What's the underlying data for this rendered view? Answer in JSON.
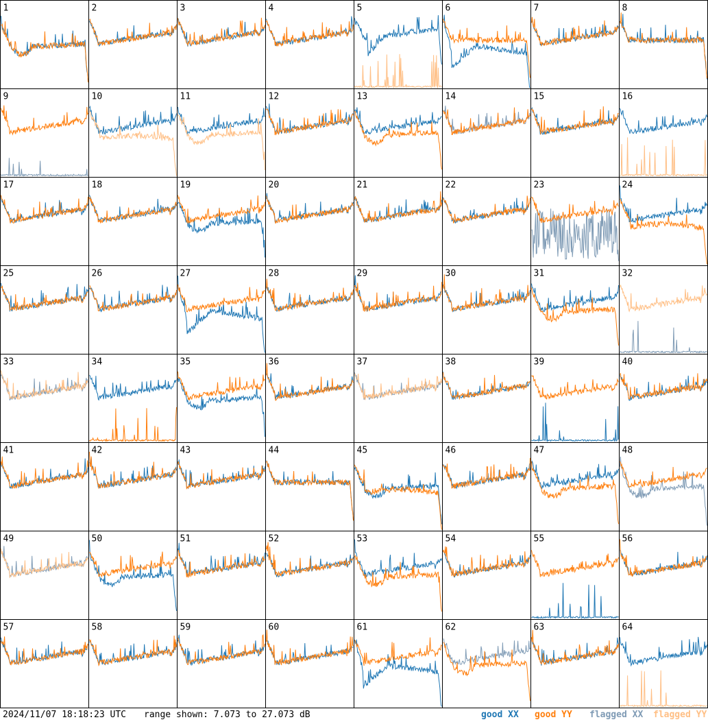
{
  "chart_data": {
    "type": "line",
    "panel_labels": [
      "1",
      "2",
      "3",
      "4",
      "5",
      "6",
      "7",
      "8",
      "9",
      "10",
      "11",
      "12",
      "13",
      "14",
      "15",
      "16",
      "17",
      "18",
      "19",
      "20",
      "21",
      "22",
      "23",
      "24",
      "25",
      "26",
      "27",
      "28",
      "29",
      "30",
      "31",
      "32",
      "33",
      "34",
      "35",
      "36",
      "37",
      "38",
      "39",
      "40",
      "41",
      "42",
      "43",
      "44",
      "45",
      "46",
      "47",
      "48",
      "49",
      "50",
      "51",
      "52",
      "53",
      "54",
      "55",
      "56",
      "57",
      "58",
      "59",
      "60",
      "61",
      "62",
      "63",
      "64"
    ],
    "panels": [
      {
        "label": "1",
        "xx": "good",
        "yy": "good",
        "xx_shape": "dip",
        "yy_shape": "dip"
      },
      {
        "label": "2",
        "xx": "good",
        "yy": "good",
        "xx_shape": "normal",
        "yy_shape": "normal"
      },
      {
        "label": "3",
        "xx": "good",
        "yy": "good",
        "xx_shape": "normal",
        "yy_shape": "normal"
      },
      {
        "label": "4",
        "xx": "good",
        "yy": "good",
        "xx_shape": "normal",
        "yy_shape": "normal"
      },
      {
        "label": "5",
        "xx": "good",
        "yy": "flagged",
        "xx_shape": "dip_high",
        "yy_shape": "flat_low"
      },
      {
        "label": "6",
        "xx": "good",
        "yy": "good",
        "xx_shape": "dip_deep",
        "yy_shape": "flat_high"
      },
      {
        "label": "7",
        "xx": "good",
        "yy": "good",
        "xx_shape": "normal",
        "yy_shape": "normal"
      },
      {
        "label": "8",
        "xx": "good",
        "yy": "good",
        "xx_shape": "flat_high",
        "yy_shape": "flat_high"
      },
      {
        "label": "9",
        "xx": "flagged",
        "yy": "good",
        "xx_shape": "flat_low",
        "yy_shape": "normal"
      },
      {
        "label": "10",
        "xx": "good",
        "yy": "flagged",
        "xx_shape": "normal",
        "yy_shape": "dip_shallow"
      },
      {
        "label": "11",
        "xx": "good",
        "yy": "flagged",
        "xx_shape": "normal",
        "yy_shape": "dip"
      },
      {
        "label": "12",
        "xx": "good",
        "yy": "good",
        "xx_shape": "normal",
        "yy_shape": "normal"
      },
      {
        "label": "13",
        "xx": "good",
        "yy": "good",
        "xx_shape": "normal",
        "yy_shape": "dip"
      },
      {
        "label": "14",
        "xx": "flagged",
        "yy": "good",
        "xx_shape": "normal",
        "yy_shape": "normal"
      },
      {
        "label": "15",
        "xx": "good",
        "yy": "good",
        "xx_shape": "normal",
        "yy_shape": "normal"
      },
      {
        "label": "16",
        "xx": "good",
        "yy": "flagged",
        "xx_shape": "normal",
        "yy_shape": "flat_low"
      },
      {
        "label": "17",
        "xx": "good",
        "yy": "good",
        "xx_shape": "normal",
        "yy_shape": "normal"
      },
      {
        "label": "18",
        "xx": "good",
        "yy": "good",
        "xx_shape": "normal",
        "yy_shape": "normal"
      },
      {
        "label": "19",
        "xx": "good",
        "yy": "good",
        "xx_shape": "dip",
        "yy_shape": "normal"
      },
      {
        "label": "20",
        "xx": "good",
        "yy": "good",
        "xx_shape": "normal",
        "yy_shape": "normal"
      },
      {
        "label": "21",
        "xx": "good",
        "yy": "good",
        "xx_shape": "normal",
        "yy_shape": "normal"
      },
      {
        "label": "22",
        "xx": "good",
        "yy": "good",
        "xx_shape": "normal",
        "yy_shape": "normal"
      },
      {
        "label": "23",
        "xx": "flagged",
        "yy": "good",
        "xx_shape": "noisy_low",
        "yy_shape": "normal"
      },
      {
        "label": "24",
        "xx": "good",
        "yy": "good",
        "xx_shape": "normal",
        "yy_shape": "dip_shallow"
      },
      {
        "label": "25",
        "xx": "good",
        "yy": "good",
        "xx_shape": "normal",
        "yy_shape": "normal"
      },
      {
        "label": "26",
        "xx": "good",
        "yy": "good",
        "xx_shape": "normal",
        "yy_shape": "normal"
      },
      {
        "label": "27",
        "xx": "good",
        "yy": "good",
        "xx_shape": "dip_deep",
        "yy_shape": "normal"
      },
      {
        "label": "28",
        "xx": "good",
        "yy": "good",
        "xx_shape": "normal",
        "yy_shape": "normal"
      },
      {
        "label": "29",
        "xx": "good",
        "yy": "good",
        "xx_shape": "normal",
        "yy_shape": "normal"
      },
      {
        "label": "30",
        "xx": "good",
        "yy": "good",
        "xx_shape": "normal",
        "yy_shape": "normal"
      },
      {
        "label": "31",
        "xx": "good",
        "yy": "good",
        "xx_shape": "normal",
        "yy_shape": "dip"
      },
      {
        "label": "32",
        "xx": "flagged",
        "yy": "flagged",
        "xx_shape": "flat_low",
        "yy_shape": "normal"
      },
      {
        "label": "33",
        "xx": "flagged",
        "yy": "flagged",
        "xx_shape": "normal",
        "yy_shape": "normal"
      },
      {
        "label": "34",
        "xx": "good",
        "yy": "good",
        "xx_shape": "normal",
        "yy_shape": "flat_low"
      },
      {
        "label": "35",
        "xx": "good",
        "yy": "good",
        "xx_shape": "dip",
        "yy_shape": "normal"
      },
      {
        "label": "36",
        "xx": "good",
        "yy": "good",
        "xx_shape": "normal",
        "yy_shape": "normal"
      },
      {
        "label": "37",
        "xx": "flagged",
        "yy": "flagged",
        "xx_shape": "normal",
        "yy_shape": "normal"
      },
      {
        "label": "38",
        "xx": "good",
        "yy": "good",
        "xx_shape": "normal",
        "yy_shape": "normal"
      },
      {
        "label": "39",
        "xx": "good",
        "yy": "good",
        "xx_shape": "flat_low",
        "yy_shape": "normal"
      },
      {
        "label": "40",
        "xx": "good",
        "yy": "good",
        "xx_shape": "normal",
        "yy_shape": "normal"
      },
      {
        "label": "41",
        "xx": "good",
        "yy": "good",
        "xx_shape": "normal",
        "yy_shape": "normal"
      },
      {
        "label": "42",
        "xx": "good",
        "yy": "good",
        "xx_shape": "normal",
        "yy_shape": "normal"
      },
      {
        "label": "43",
        "xx": "good",
        "yy": "good",
        "xx_shape": "normal",
        "yy_shape": "normal"
      },
      {
        "label": "44",
        "xx": "good",
        "yy": "good",
        "xx_shape": "flat_high",
        "yy_shape": "flat_high"
      },
      {
        "label": "45",
        "xx": "good",
        "yy": "good",
        "xx_shape": "dip",
        "yy_shape": "dip_shallow"
      },
      {
        "label": "46",
        "xx": "good",
        "yy": "good",
        "xx_shape": "normal",
        "yy_shape": "normal"
      },
      {
        "label": "47",
        "xx": "good",
        "yy": "good",
        "xx_shape": "normal",
        "yy_shape": "dip"
      },
      {
        "label": "48",
        "xx": "flagged",
        "yy": "good",
        "xx_shape": "dip",
        "yy_shape": "normal"
      },
      {
        "label": "49",
        "xx": "flagged",
        "yy": "flagged",
        "xx_shape": "normal",
        "yy_shape": "normal"
      },
      {
        "label": "50",
        "xx": "good",
        "yy": "good",
        "xx_shape": "dip",
        "yy_shape": "normal"
      },
      {
        "label": "51",
        "xx": "good",
        "yy": "good",
        "xx_shape": "normal",
        "yy_shape": "normal"
      },
      {
        "label": "52",
        "xx": "good",
        "yy": "good",
        "xx_shape": "normal",
        "yy_shape": "normal"
      },
      {
        "label": "53",
        "xx": "good",
        "yy": "good",
        "xx_shape": "normal",
        "yy_shape": "dip"
      },
      {
        "label": "54",
        "xx": "good",
        "yy": "good",
        "xx_shape": "normal",
        "yy_shape": "normal"
      },
      {
        "label": "55",
        "xx": "good",
        "yy": "good",
        "xx_shape": "flat_low",
        "yy_shape": "normal"
      },
      {
        "label": "56",
        "xx": "good",
        "yy": "good",
        "xx_shape": "normal",
        "yy_shape": "normal"
      },
      {
        "label": "57",
        "xx": "good",
        "yy": "good",
        "xx_shape": "normal",
        "yy_shape": "normal"
      },
      {
        "label": "58",
        "xx": "good",
        "yy": "good",
        "xx_shape": "normal",
        "yy_shape": "normal"
      },
      {
        "label": "59",
        "xx": "good",
        "yy": "good",
        "xx_shape": "normal",
        "yy_shape": "normal"
      },
      {
        "label": "60",
        "xx": "good",
        "yy": "good",
        "xx_shape": "normal",
        "yy_shape": "normal"
      },
      {
        "label": "61",
        "xx": "good",
        "yy": "good",
        "xx_shape": "dip_deep",
        "yy_shape": "normal"
      },
      {
        "label": "62",
        "xx": "flagged",
        "yy": "good",
        "xx_shape": "normal",
        "yy_shape": "dip"
      },
      {
        "label": "63",
        "xx": "good",
        "yy": "good",
        "xx_shape": "normal",
        "yy_shape": "normal"
      },
      {
        "label": "64",
        "xx": "good",
        "yy": "flagged",
        "xx_shape": "normal",
        "yy_shape": "flat_low"
      }
    ],
    "range_db": [
      7.073,
      27.073
    ],
    "colors": {
      "good_xx": "#1f77b4",
      "good_yy": "#ff7f0e",
      "flagged_xx": "#7f9bb5",
      "flagged_yy": "#ffbf85",
      "grid": "#000000"
    }
  },
  "footer": {
    "timestamp": "2024/11/07 18:18:23 UTC",
    "range": "range shown: 7.073 to 27.073 dB"
  },
  "legend": {
    "good_xx": "good XX",
    "good_yy": "good YY",
    "flagged_xx": "flagged XX",
    "flagged_yy": "flagged YY"
  }
}
